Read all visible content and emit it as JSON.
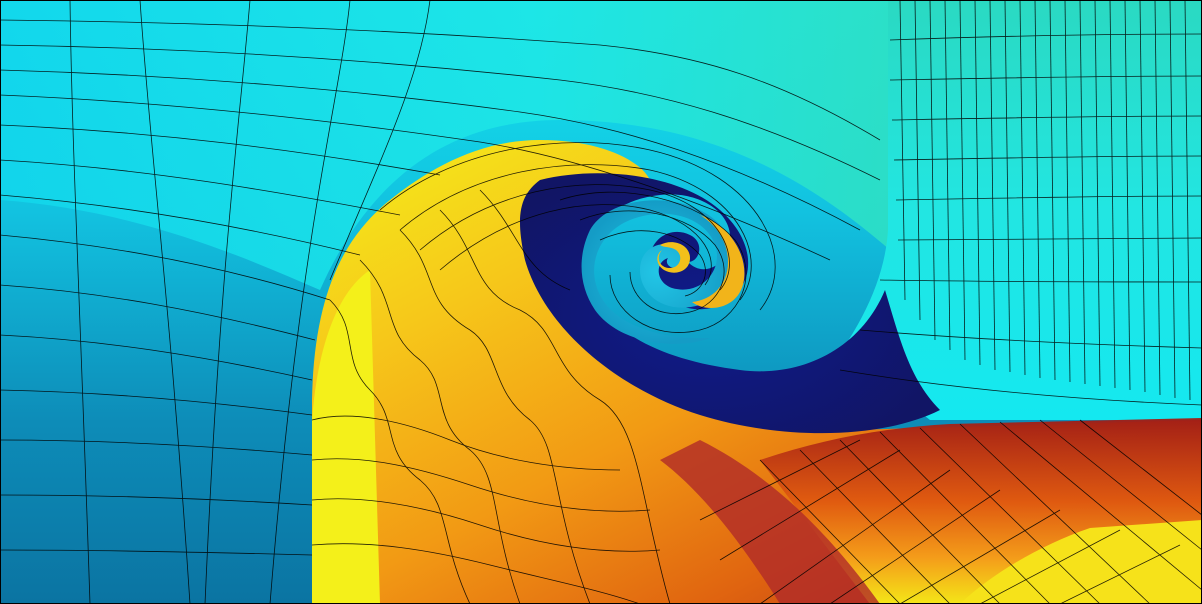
{
  "figure": {
    "kind": "simulation-field-visualization",
    "description_terms": [
      "vortex",
      "rollup",
      "mesh",
      "contour"
    ],
    "palette": {
      "deep_blue": "#0d7aa6",
      "cyan": "#18d9e8",
      "aqua": "#22e0d0",
      "mint": "#2ee0c0",
      "navy": "#141a78",
      "yellow": "#f2ef18",
      "amber": "#f3b51a",
      "orange": "#f07b12",
      "dark_red": "#9a1b18",
      "crimson": "#b83035",
      "mesh_line": "#000000"
    }
  }
}
